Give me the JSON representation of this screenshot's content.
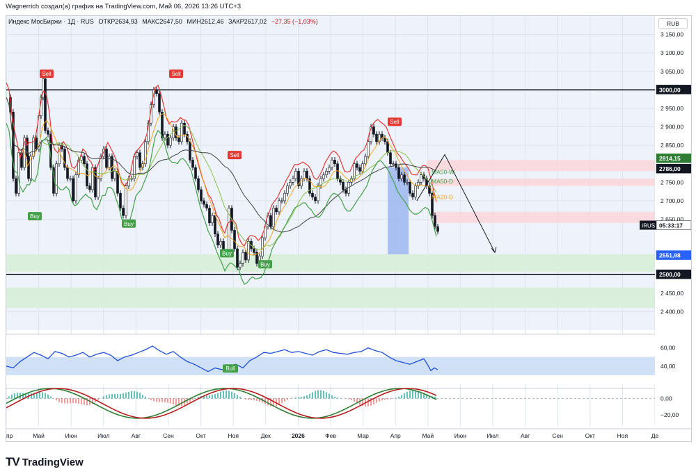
{
  "header": {
    "attribution": "Wagnerrich создал(а) график на TradingView.com, Май 06, 2026 13:26 UTC+3"
  },
  "legend": {
    "symbol": "Индекс МосБиржи · 1Д · RUS",
    "open": "ОТКР2634,93",
    "high": "МАКС2647,50",
    "low": "МИН2612,46",
    "close": "ЗАКР2617,02",
    "change": "−27,35 (−1,03%)"
  },
  "currency": "RUB",
  "footer": {
    "brand": "TradingView"
  },
  "colors": {
    "up": "#2e7d32",
    "down": "#b71c1c",
    "sell": "#e53935",
    "buy": "#43a047",
    "panel": "#eef2fa",
    "blue_zone": "#9bb7f0",
    "pink_zone": "#f8d7dc",
    "green_zone": "#d8eed9"
  },
  "chart_data": [
    {
      "type": "candlestick",
      "ylim": [
        2350,
        3200
      ],
      "price_ticks": [
        "3 150,00",
        "3 100,00",
        "3 050,00",
        "2 950,00",
        "2 900,00",
        "2 850,00",
        "2 750,00",
        "2 700,00",
        "2 650,00",
        "2 450,00",
        "2 400,00"
      ],
      "price_tick_values": [
        3150,
        3100,
        3050,
        2950,
        2900,
        2850,
        2750,
        2700,
        2650,
        2450,
        2400
      ],
      "price_labels": [
        {
          "text": "3000,00",
          "value": 3000,
          "style": "dark"
        },
        {
          "text": "2814,15",
          "value": 2814.15,
          "style": "green"
        },
        {
          "text": "2786,00",
          "value": 2786,
          "style": "dark"
        },
        {
          "text": "2551,98",
          "value": 2551.98,
          "style": "blue"
        },
        {
          "text": "2500,00",
          "value": 2500,
          "style": "dark"
        },
        {
          "text": "05:33:17",
          "value": 2633,
          "style": "countdown"
        }
      ],
      "symbol_tag": "IRUS",
      "x_labels": [
        "пр",
        "Май",
        "Июн",
        "Июл",
        "Авг",
        "Сен",
        "Окт",
        "Ноя",
        "Дек",
        "2026",
        "Фев",
        "Мар",
        "Апр",
        "Май",
        "Июн",
        "Июл",
        "Авг",
        "Сен",
        "Окт",
        "Ноя",
        "Де"
      ],
      "price_path": [
        [
          0,
          2980
        ],
        [
          4,
          2940
        ],
        [
          8,
          2760
        ],
        [
          12,
          2720
        ],
        [
          16,
          2830
        ],
        [
          20,
          2790
        ],
        [
          24,
          2870
        ],
        [
          28,
          2820
        ],
        [
          30,
          2760
        ],
        [
          33,
          2820
        ],
        [
          37,
          2870
        ],
        [
          41,
          2840
        ],
        [
          45,
          2930
        ],
        [
          48,
          2980
        ],
        [
          51,
          3030
        ],
        [
          54,
          2890
        ],
        [
          58,
          2880
        ],
        [
          62,
          2790
        ],
        [
          66,
          2720
        ],
        [
          70,
          2800
        ],
        [
          74,
          2850
        ],
        [
          78,
          2840
        ],
        [
          82,
          2790
        ],
        [
          86,
          2760
        ],
        [
          90,
          2760
        ],
        [
          94,
          2700
        ],
        [
          98,
          2770
        ],
        [
          102,
          2810
        ],
        [
          106,
          2820
        ],
        [
          110,
          2800
        ],
        [
          114,
          2740
        ],
        [
          118,
          2730
        ],
        [
          122,
          2790
        ],
        [
          126,
          2710
        ],
        [
          130,
          2760
        ],
        [
          134,
          2820
        ],
        [
          138,
          2840
        ],
        [
          142,
          2790
        ],
        [
          146,
          2820
        ],
        [
          150,
          2760
        ],
        [
          154,
          2780
        ],
        [
          158,
          2720
        ],
        [
          162,
          2680
        ],
        [
          166,
          2660
        ],
        [
          170,
          2740
        ],
        [
          174,
          2760
        ],
        [
          178,
          2760
        ],
        [
          182,
          2820
        ],
        [
          186,
          2830
        ],
        [
          190,
          2790
        ],
        [
          194,
          2800
        ],
        [
          198,
          2860
        ],
        [
          202,
          2910
        ],
        [
          206,
          2960
        ],
        [
          210,
          3000
        ],
        [
          214,
          2990
        ],
        [
          218,
          2940
        ],
        [
          222,
          2870
        ],
        [
          226,
          2880
        ],
        [
          230,
          2850
        ],
        [
          234,
          2870
        ],
        [
          238,
          2900
        ],
        [
          242,
          2870
        ],
        [
          246,
          2860
        ],
        [
          250,
          2910
        ],
        [
          254,
          2880
        ],
        [
          258,
          2860
        ],
        [
          262,
          2810
        ],
        [
          266,
          2790
        ],
        [
          270,
          2760
        ],
        [
          274,
          2730
        ],
        [
          278,
          2700
        ],
        [
          282,
          2690
        ],
        [
          286,
          2680
        ],
        [
          290,
          2640
        ],
        [
          294,
          2660
        ],
        [
          298,
          2610
        ],
        [
          302,
          2580
        ],
        [
          306,
          2590
        ],
        [
          310,
          2560
        ],
        [
          314,
          2560
        ],
        [
          318,
          2680
        ],
        [
          322,
          2620
        ],
        [
          326,
          2570
        ],
        [
          330,
          2520
        ],
        [
          334,
          2530
        ],
        [
          338,
          2560
        ],
        [
          342,
          2540
        ],
        [
          346,
          2590
        ],
        [
          350,
          2570
        ],
        [
          354,
          2560
        ],
        [
          358,
          2530
        ],
        [
          362,
          2550
        ],
        [
          366,
          2600
        ],
        [
          370,
          2630
        ],
        [
          374,
          2660
        ],
        [
          378,
          2630
        ],
        [
          382,
          2680
        ],
        [
          386,
          2670
        ],
        [
          390,
          2700
        ],
        [
          394,
          2700
        ],
        [
          398,
          2720
        ],
        [
          402,
          2740
        ],
        [
          406,
          2750
        ],
        [
          410,
          2760
        ],
        [
          414,
          2780
        ],
        [
          418,
          2740
        ],
        [
          422,
          2760
        ],
        [
          426,
          2780
        ],
        [
          430,
          2760
        ],
        [
          434,
          2720
        ],
        [
          438,
          2710
        ],
        [
          442,
          2700
        ],
        [
          446,
          2740
        ],
        [
          450,
          2760
        ],
        [
          454,
          2770
        ],
        [
          458,
          2780
        ],
        [
          462,
          2790
        ],
        [
          466,
          2810
        ],
        [
          470,
          2800
        ],
        [
          474,
          2760
        ],
        [
          478,
          2750
        ],
        [
          482,
          2730
        ],
        [
          486,
          2720
        ],
        [
          490,
          2750
        ],
        [
          494,
          2760
        ],
        [
          498,
          2800
        ],
        [
          502,
          2790
        ],
        [
          506,
          2780
        ],
        [
          510,
          2800
        ],
        [
          514,
          2820
        ],
        [
          518,
          2860
        ],
        [
          522,
          2900
        ],
        [
          526,
          2880
        ],
        [
          530,
          2860
        ],
        [
          534,
          2880
        ],
        [
          538,
          2870
        ],
        [
          542,
          2860
        ],
        [
          546,
          2830
        ],
        [
          550,
          2800
        ],
        [
          554,
          2800
        ],
        [
          558,
          2790
        ],
        [
          562,
          2760
        ],
        [
          566,
          2770
        ],
        [
          570,
          2750
        ],
        [
          574,
          2750
        ],
        [
          578,
          2720
        ],
        [
          582,
          2710
        ],
        [
          586,
          2740
        ],
        [
          590,
          2750
        ],
        [
          594,
          2770
        ],
        [
          598,
          2760
        ],
        [
          602,
          2740
        ],
        [
          606,
          2720
        ],
        [
          610,
          2660
        ],
        [
          614,
          2630
        ],
        [
          618,
          2617
        ]
      ],
      "sell_signals": [
        [
          57,
          3040
        ],
        [
          243,
          3040
        ],
        [
          327,
          2820
        ],
        [
          557,
          2910
        ]
      ],
      "buy_signals": [
        [
          40,
          2660
        ],
        [
          175,
          2640
        ],
        [
          316,
          2560
        ],
        [
          371,
          2530
        ]
      ],
      "ma_labels": [
        {
          "text": "MA50-W",
          "value": 2778
        },
        {
          "text": "MA50-D",
          "value": 2752
        },
        {
          "text": "MA20-D",
          "value": 2710
        }
      ],
      "zones": [
        {
          "kind": "pink",
          "from_x": 604,
          "to_x": 940,
          "from": 2780,
          "to": 2810
        },
        {
          "kind": "pink",
          "from_x": 612,
          "to_x": 940,
          "from": 2740,
          "to": 2760
        },
        {
          "kind": "pink",
          "from_x": 612,
          "to_x": 940,
          "from": 2640,
          "to": 2670
        },
        {
          "kind": "green",
          "from_x": 0,
          "to_x": 940,
          "from": 2508,
          "to": 2555
        },
        {
          "kind": "green",
          "from_x": 0,
          "to_x": 940,
          "from": 2410,
          "to": 2465
        },
        {
          "kind": "blue",
          "from_x": 548,
          "to_x": 578,
          "from": 2555,
          "to": 2790
        }
      ],
      "hlines": [
        3000,
        2500
      ],
      "projection": [
        [
          590,
          2700
        ],
        [
          630,
          2825
        ],
        [
          702,
          2560
        ]
      ]
    },
    {
      "type": "line",
      "name": "rsi",
      "ylim": [
        20,
        75
      ],
      "y_ticks": [
        "60,00",
        "40,00"
      ],
      "y_tick_values": [
        60,
        40
      ],
      "band": [
        30,
        50
      ],
      "label": "Bull",
      "values": [
        [
          0,
          40
        ],
        [
          10,
          38
        ],
        [
          20,
          45
        ],
        [
          30,
          50
        ],
        [
          40,
          55
        ],
        [
          50,
          52
        ],
        [
          60,
          48
        ],
        [
          70,
          56
        ],
        [
          80,
          54
        ],
        [
          90,
          50
        ],
        [
          100,
          52
        ],
        [
          110,
          55
        ],
        [
          120,
          50
        ],
        [
          130,
          53
        ],
        [
          140,
          55
        ],
        [
          150,
          52
        ],
        [
          160,
          46
        ],
        [
          170,
          50
        ],
        [
          180,
          52
        ],
        [
          190,
          55
        ],
        [
          200,
          58
        ],
        [
          210,
          62
        ],
        [
          220,
          57
        ],
        [
          230,
          53
        ],
        [
          240,
          56
        ],
        [
          250,
          50
        ],
        [
          260,
          45
        ],
        [
          270,
          42
        ],
        [
          280,
          38
        ],
        [
          290,
          34
        ],
        [
          300,
          38
        ],
        [
          310,
          36
        ],
        [
          320,
          40
        ],
        [
          330,
          42
        ],
        [
          340,
          38
        ],
        [
          350,
          46
        ],
        [
          360,
          50
        ],
        [
          370,
          55
        ],
        [
          380,
          54
        ],
        [
          390,
          56
        ],
        [
          400,
          58
        ],
        [
          410,
          55
        ],
        [
          420,
          56
        ],
        [
          430,
          54
        ],
        [
          440,
          52
        ],
        [
          450,
          56
        ],
        [
          460,
          58
        ],
        [
          470,
          55
        ],
        [
          480,
          54
        ],
        [
          490,
          53
        ],
        [
          500,
          55
        ],
        [
          510,
          56
        ],
        [
          520,
          60
        ],
        [
          530,
          57
        ],
        [
          540,
          55
        ],
        [
          550,
          50
        ],
        [
          560,
          46
        ],
        [
          570,
          44
        ],
        [
          580,
          42
        ],
        [
          590,
          45
        ],
        [
          600,
          48
        ],
        [
          605,
          42
        ],
        [
          610,
          35
        ],
        [
          615,
          38
        ],
        [
          620,
          36
        ]
      ]
    },
    {
      "type": "oscillator",
      "ylim": [
        -35,
        12
      ],
      "y_ticks": [
        "0,00",
        "−20,00"
      ],
      "y_tick_values": [
        0,
        -20
      ]
    }
  ]
}
